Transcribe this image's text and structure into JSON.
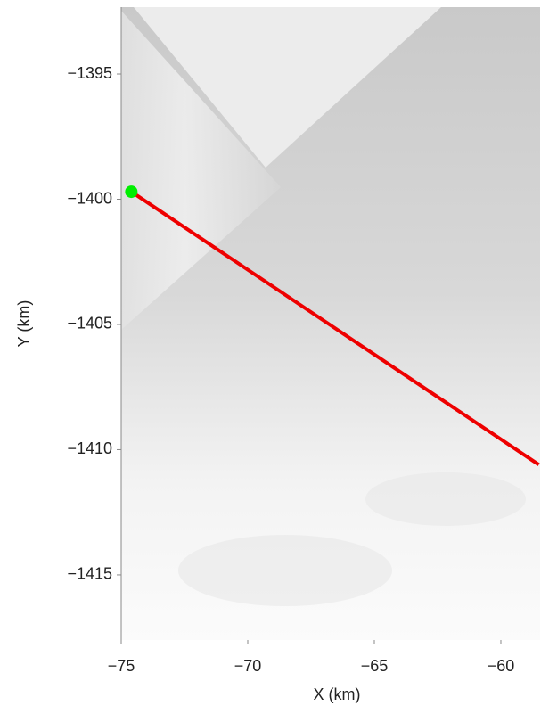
{
  "chart_data": {
    "type": "line",
    "xlabel": "X (km)",
    "ylabel": "Y (km)",
    "xlim": [
      -75,
      -58.45
    ],
    "ylim": [
      -1417.6,
      -1392.33
    ],
    "xticks": [
      {
        "value": -75,
        "label": "−75"
      },
      {
        "value": -70,
        "label": "−70"
      },
      {
        "value": -65,
        "label": "−65"
      },
      {
        "value": -60,
        "label": "−60"
      }
    ],
    "yticks": [
      {
        "value": -1395,
        "label": "−1395"
      },
      {
        "value": -1400,
        "label": "−1400"
      },
      {
        "value": -1405,
        "label": "−1405"
      },
      {
        "value": -1410,
        "label": "−1410"
      },
      {
        "value": -1415,
        "label": "−1415"
      }
    ],
    "series": [
      {
        "style": "line",
        "color": "#ee0000",
        "x": [
          -74.6,
          -58.5
        ],
        "values": [
          -1399.7,
          -1410.6
        ]
      },
      {
        "style": "marker",
        "color": "#00ee00",
        "x": [
          -74.6
        ],
        "values": [
          -1399.7
        ]
      }
    ]
  }
}
